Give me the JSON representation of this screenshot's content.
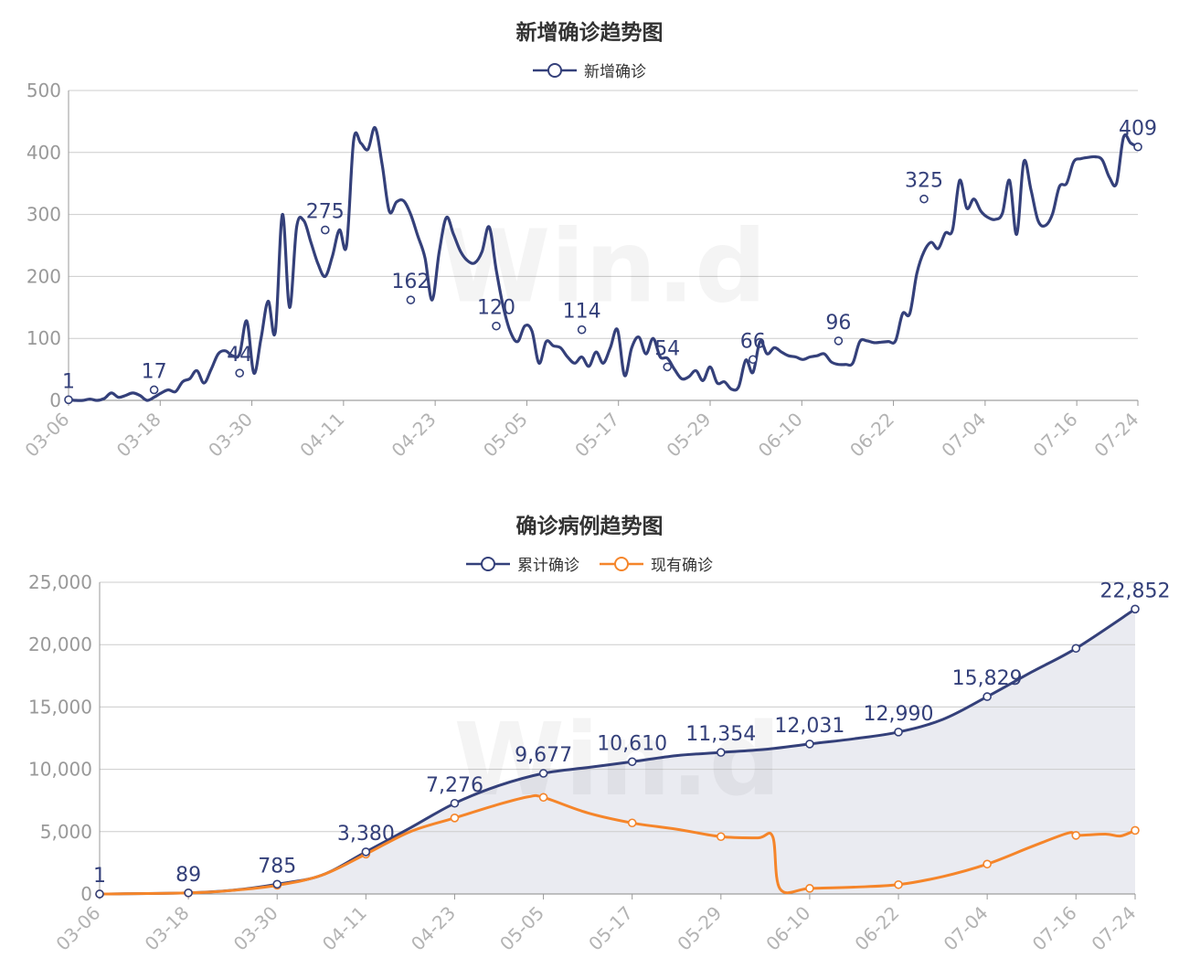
{
  "chart_data": [
    {
      "type": "line",
      "title": "新增确诊趋势图",
      "watermark": "Win.d",
      "x_tick_labels": [
        "03-06",
        "03-18",
        "03-30",
        "04-11",
        "04-23",
        "05-05",
        "05-17",
        "05-29",
        "06-10",
        "06-22",
        "07-04",
        "07-16",
        "07-24"
      ],
      "y_tick_labels": [
        "0",
        "100",
        "200",
        "300",
        "400",
        "500"
      ],
      "ylim": [
        0,
        500
      ],
      "grid": true,
      "legend_position": "top-center",
      "series": [
        {
          "name": "新增确诊",
          "color": "#34407a",
          "values": [
            1,
            0,
            0,
            2,
            0,
            3,
            12,
            5,
            8,
            12,
            8,
            0,
            5,
            12,
            17,
            14,
            30,
            35,
            48,
            28,
            50,
            75,
            80,
            72,
            75,
            128,
            44,
            100,
            160,
            110,
            300,
            150,
            280,
            290,
            255,
            220,
            200,
            232,
            275,
            250,
            420,
            415,
            405,
            440,
            380,
            305,
            320,
            322,
            300,
            265,
            230,
            162,
            240,
            295,
            268,
            240,
            225,
            222,
            240,
            280,
            210,
            150,
            110,
            95,
            120,
            112,
            60,
            95,
            88,
            85,
            70,
            60,
            70,
            55,
            78,
            60,
            85,
            114,
            40,
            85,
            102,
            75,
            100,
            70,
            68,
            50,
            35,
            38,
            48,
            32,
            54,
            28,
            30,
            18,
            22,
            65,
            45,
            95,
            75,
            85,
            78,
            72,
            70,
            66,
            70,
            72,
            75,
            62,
            58,
            58,
            60,
            95,
            96,
            93,
            94,
            95,
            96,
            140,
            140,
            205,
            240,
            255,
            245,
            270,
            275,
            355,
            310,
            325,
            305,
            295,
            292,
            302,
            355,
            268,
            385,
            340,
            290,
            282,
            300,
            345,
            350,
            385,
            390,
            392,
            393,
            388,
            360,
            350,
            425,
            415,
            409
          ],
          "labeled_points": [
            {
              "x": "03-06",
              "value": 1
            },
            {
              "x": "03-18",
              "value": 17
            },
            {
              "x": "03-30",
              "value": 44
            },
            {
              "x": "04-11",
              "value": 275
            },
            {
              "x": "04-23",
              "value": 162
            },
            {
              "x": "05-05",
              "value": 120
            },
            {
              "x": "05-17",
              "value": 114
            },
            {
              "x": "05-29",
              "value": 54
            },
            {
              "x": "06-10",
              "value": 66
            },
            {
              "x": "06-22",
              "value": 96
            },
            {
              "x": "07-04",
              "value": 325
            },
            {
              "x": "07-24",
              "value": 409
            }
          ]
        }
      ]
    },
    {
      "type": "area",
      "title": "确诊病例趋势图",
      "watermark": "Win.d",
      "x_tick_labels": [
        "03-06",
        "03-18",
        "03-30",
        "04-11",
        "04-23",
        "05-05",
        "05-17",
        "05-29",
        "06-10",
        "06-22",
        "07-04",
        "07-16",
        "07-24"
      ],
      "y_tick_labels": [
        "0",
        "5,000",
        "10,000",
        "15,000",
        "20,000",
        "25,000"
      ],
      "ylim": [
        0,
        25000
      ],
      "grid": true,
      "legend_position": "top-center",
      "series": [
        {
          "name": "累计确诊",
          "color": "#34407a",
          "area_fill": "#e9eaf0",
          "points": [
            {
              "x": 0,
              "value": 1
            },
            {
              "x": 12,
              "value": 89
            },
            {
              "x": 18,
              "value": 300
            },
            {
              "x": 24,
              "value": 785
            },
            {
              "x": 30,
              "value": 1500
            },
            {
              "x": 36,
              "value": 3380
            },
            {
              "x": 42,
              "value": 5300
            },
            {
              "x": 48,
              "value": 7276
            },
            {
              "x": 54,
              "value": 8700
            },
            {
              "x": 60,
              "value": 9677
            },
            {
              "x": 66,
              "value": 10150
            },
            {
              "x": 72,
              "value": 10610
            },
            {
              "x": 78,
              "value": 11100
            },
            {
              "x": 84,
              "value": 11354
            },
            {
              "x": 90,
              "value": 11600
            },
            {
              "x": 96,
              "value": 12031
            },
            {
              "x": 102,
              "value": 12450
            },
            {
              "x": 108,
              "value": 12990
            },
            {
              "x": 114,
              "value": 14000
            },
            {
              "x": 120,
              "value": 15829
            },
            {
              "x": 126,
              "value": 17800
            },
            {
              "x": 132,
              "value": 19700
            },
            {
              "x": 140,
              "value": 22852
            }
          ],
          "labeled_points": [
            {
              "x": "03-06",
              "value": 1,
              "label": "1"
            },
            {
              "x": "03-18",
              "value": 89,
              "label": "89"
            },
            {
              "x": "03-30",
              "value": 785,
              "label": "785"
            },
            {
              "x": "04-11",
              "value": 3380,
              "label": "3,380"
            },
            {
              "x": "04-23",
              "value": 7276,
              "label": "7,276"
            },
            {
              "x": "05-05",
              "value": 9677,
              "label": "9,677"
            },
            {
              "x": "05-17",
              "value": 10610,
              "label": "10,610"
            },
            {
              "x": "05-29",
              "value": 11354,
              "label": "11,354"
            },
            {
              "x": "06-10",
              "value": 12031,
              "label": "12,031"
            },
            {
              "x": "06-22",
              "value": 12990,
              "label": "12,990"
            },
            {
              "x": "07-04",
              "value": 15829,
              "label": "15,829"
            },
            {
              "x": "07-24",
              "value": 22852,
              "label": "22,852"
            }
          ]
        },
        {
          "name": "现有确诊",
          "color": "#f5852a",
          "points": [
            {
              "x": 0,
              "value": 1
            },
            {
              "x": 12,
              "value": 85
            },
            {
              "x": 18,
              "value": 290
            },
            {
              "x": 24,
              "value": 700
            },
            {
              "x": 30,
              "value": 1500
            },
            {
              "x": 36,
              "value": 3200
            },
            {
              "x": 42,
              "value": 5000
            },
            {
              "x": 48,
              "value": 6100
            },
            {
              "x": 54,
              "value": 7200
            },
            {
              "x": 58,
              "value": 7800
            },
            {
              "x": 60,
              "value": 7750
            },
            {
              "x": 66,
              "value": 6500
            },
            {
              "x": 72,
              "value": 5700
            },
            {
              "x": 78,
              "value": 5200
            },
            {
              "x": 84,
              "value": 4600
            },
            {
              "x": 89,
              "value": 4500
            },
            {
              "x": 91,
              "value": 4600
            },
            {
              "x": 92,
              "value": 400
            },
            {
              "x": 96,
              "value": 450
            },
            {
              "x": 102,
              "value": 550
            },
            {
              "x": 108,
              "value": 750
            },
            {
              "x": 114,
              "value": 1400
            },
            {
              "x": 120,
              "value": 2400
            },
            {
              "x": 126,
              "value": 3800
            },
            {
              "x": 131,
              "value": 4900
            },
            {
              "x": 132,
              "value": 4700
            },
            {
              "x": 136,
              "value": 4800
            },
            {
              "x": 138,
              "value": 4650
            },
            {
              "x": 140,
              "value": 5100
            }
          ],
          "marker_x": [
            0,
            12,
            24,
            36,
            48,
            60,
            72,
            84,
            96,
            108,
            120,
            132,
            140
          ]
        }
      ]
    }
  ]
}
